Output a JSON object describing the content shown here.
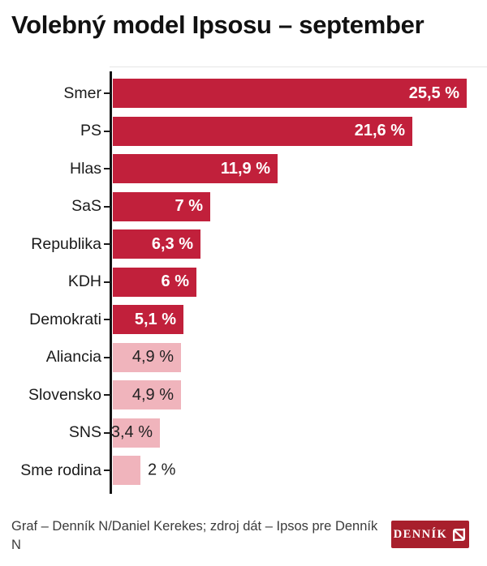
{
  "title": "Volebný model Ipsosu – september",
  "chart_data": {
    "type": "bar",
    "orientation": "horizontal",
    "title": "Volebný model Ipsosu – september",
    "categories": [
      "Smer",
      "PS",
      "Hlas",
      "SaS",
      "Republika",
      "KDH",
      "Demokrati",
      "Aliancia",
      "Slovensko",
      "SNS",
      "Sme rodina"
    ],
    "values": [
      25.5,
      21.6,
      11.9,
      7,
      6.3,
      6,
      5.1,
      4.9,
      4.9,
      3.4,
      2
    ],
    "value_labels": [
      "25,5 %",
      "21,6 %",
      "11,9 %",
      "7 %",
      "6,3 %",
      "6 %",
      "5,1 %",
      "4,9 %",
      "4,9 %",
      "3,4 %",
      "2 %"
    ],
    "unit": "%",
    "xlim": [
      0,
      26
    ],
    "grid": false,
    "legend": false,
    "bar_colors": [
      "#c1203b",
      "#c1203b",
      "#c1203b",
      "#c1203b",
      "#c1203b",
      "#c1203b",
      "#c1203b",
      "#f0b4bc",
      "#f0b4bc",
      "#f0b4bc",
      "#f0b4bc"
    ],
    "value_label_colors": [
      "#ffffff",
      "#ffffff",
      "#ffffff",
      "#ffffff",
      "#ffffff",
      "#ffffff",
      "#ffffff",
      "#222222",
      "#222222",
      "#222222",
      "#222222"
    ],
    "value_label_placement": [
      "inside",
      "inside",
      "inside",
      "inside",
      "inside",
      "inside",
      "inside",
      "inside",
      "inside",
      "inside",
      "outside"
    ]
  },
  "footer": {
    "line1": "Graf – Denník N/Daniel Kerekes; zdroj dát – Ipsos pre Denník",
    "line2": "N"
  },
  "logo": {
    "text": "DENNÍK",
    "mark": "N"
  },
  "colors": {
    "bar_strong": "#c1203b",
    "bar_light": "#f0b4bc",
    "axis": "#141414",
    "title_text": "#111111",
    "credit_text": "#3b3b3b",
    "logo_bg": "#a81f2c"
  }
}
